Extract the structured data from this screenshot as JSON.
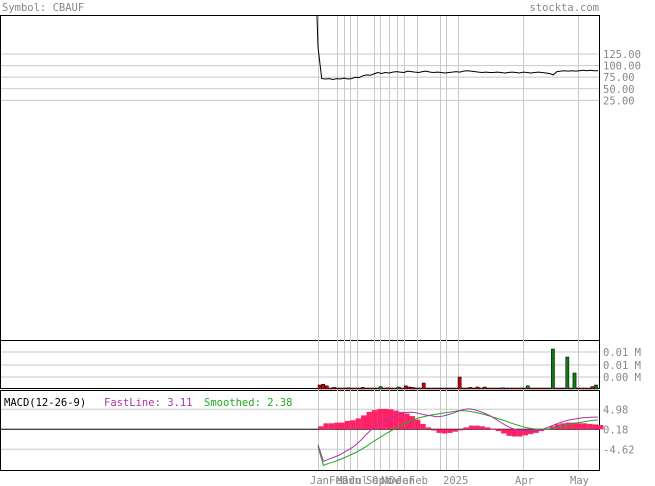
{
  "header": {
    "symbol_label": "Symbol: CBAUF",
    "brand": "stockta.com"
  },
  "colors": {
    "text_gray": "#888888",
    "grid": "#c8c8c8",
    "price_line": "#000000",
    "volume_up": "#117711",
    "volume_down": "#cc0000",
    "macd_fast": "#aa33aa",
    "macd_smoothed": "#22aa22",
    "macd_histogram": "#ff2266"
  },
  "chart_data": [
    {
      "type": "line",
      "panel": "price",
      "y_ticks": [
        "125.00",
        "100.00",
        "75.00",
        "50.00",
        "25.00"
      ],
      "x_ticks": [
        "Jan",
        "Feb",
        "Mar",
        "Jun",
        "Jul",
        "Sep",
        "Oct",
        "Nov",
        "Dec",
        "Jan",
        "Feb",
        "2025",
        "Apr",
        "May"
      ],
      "ylim": [
        0,
        140
      ],
      "series": [
        {
          "values": [
            140,
            72,
            71,
            72,
            70,
            72,
            71,
            73,
            71,
            72,
            75,
            74,
            78,
            80,
            79,
            82,
            85,
            83,
            85,
            84,
            86,
            87,
            86,
            85,
            88,
            87,
            86,
            85,
            87,
            88,
            86,
            85,
            86,
            85,
            84,
            85,
            86,
            87,
            86,
            88,
            89,
            88,
            87,
            86,
            85,
            86,
            85,
            85,
            86,
            85,
            84,
            85,
            86,
            85,
            84,
            86,
            85,
            84,
            85,
            86,
            85,
            84,
            83,
            80,
            87,
            88,
            89,
            88,
            89,
            88,
            89,
            90,
            89,
            90,
            89,
            89
          ]
        }
      ]
    },
    {
      "type": "bar",
      "panel": "volume",
      "y_ticks": [
        "0.01 M",
        "0.01 M",
        "0.00 M"
      ],
      "bars": [
        {
          "v": 0.1,
          "c": "red"
        },
        {
          "v": 0.12,
          "c": "red"
        },
        {
          "v": 0.08,
          "c": "red"
        },
        {
          "v": 0.0,
          "c": "red"
        },
        {
          "v": 0.04,
          "c": "red"
        },
        {
          "v": 0.02,
          "c": "red"
        },
        {
          "v": 0.02,
          "c": "red"
        },
        {
          "v": 0.0,
          "c": "red"
        },
        {
          "v": 0.03,
          "c": "red"
        },
        {
          "v": 0.02,
          "c": "red"
        },
        {
          "v": 0.02,
          "c": "red"
        },
        {
          "v": 0.0,
          "c": "red"
        },
        {
          "v": 0.04,
          "c": "red"
        },
        {
          "v": 0.0,
          "c": "red"
        },
        {
          "v": 0.02,
          "c": "red"
        },
        {
          "v": 0.02,
          "c": "red"
        },
        {
          "v": 0.0,
          "c": "red"
        },
        {
          "v": 0.06,
          "c": "green"
        },
        {
          "v": 0.0,
          "c": "red"
        },
        {
          "v": 0.03,
          "c": "red"
        },
        {
          "v": 0.0,
          "c": "red"
        },
        {
          "v": 0.0,
          "c": "red"
        },
        {
          "v": 0.05,
          "c": "green"
        },
        {
          "v": 0.0,
          "c": "red"
        },
        {
          "v": 0.08,
          "c": "red"
        },
        {
          "v": 0.05,
          "c": "red"
        },
        {
          "v": 0.04,
          "c": "red"
        },
        {
          "v": 0.0,
          "c": "red"
        },
        {
          "v": 0.0,
          "c": "red"
        },
        {
          "v": 0.15,
          "c": "red"
        },
        {
          "v": 0.0,
          "c": "red"
        },
        {
          "v": 0.0,
          "c": "red"
        },
        {
          "v": 0.02,
          "c": "red"
        },
        {
          "v": 0.0,
          "c": "red"
        },
        {
          "v": 0.0,
          "c": "red"
        },
        {
          "v": 0.0,
          "c": "red"
        },
        {
          "v": 0.0,
          "c": "red"
        },
        {
          "v": 0.02,
          "c": "red"
        },
        {
          "v": 0.0,
          "c": "red"
        },
        {
          "v": 0.3,
          "c": "red"
        },
        {
          "v": 0.0,
          "c": "red"
        },
        {
          "v": 0.0,
          "c": "red"
        },
        {
          "v": 0.04,
          "c": "red"
        },
        {
          "v": 0.0,
          "c": "red"
        },
        {
          "v": 0.05,
          "c": "red"
        },
        {
          "v": 0.02,
          "c": "green"
        },
        {
          "v": 0.05,
          "c": "red"
        },
        {
          "v": 0.0,
          "c": "red"
        },
        {
          "v": 0.0,
          "c": "red"
        },
        {
          "v": 0.02,
          "c": "red"
        },
        {
          "v": 0.0,
          "c": "red"
        },
        {
          "v": 0.03,
          "c": "red"
        },
        {
          "v": 0.0,
          "c": "red"
        },
        {
          "v": 0.0,
          "c": "red"
        },
        {
          "v": 0.0,
          "c": "red"
        },
        {
          "v": 0.0,
          "c": "red"
        },
        {
          "v": 0.0,
          "c": "red"
        },
        {
          "v": 0.0,
          "c": "red"
        },
        {
          "v": 0.08,
          "c": "green"
        },
        {
          "v": 0.0,
          "c": "red"
        },
        {
          "v": 0.0,
          "c": "red"
        },
        {
          "v": 0.0,
          "c": "red"
        },
        {
          "v": 0.0,
          "c": "red"
        },
        {
          "v": 0.0,
          "c": "red"
        },
        {
          "v": 0.0,
          "c": "red"
        },
        {
          "v": 1.0,
          "c": "green"
        },
        {
          "v": 0.0,
          "c": "red"
        },
        {
          "v": 0.0,
          "c": "red"
        },
        {
          "v": 0.0,
          "c": "red"
        },
        {
          "v": 0.8,
          "c": "green"
        },
        {
          "v": 0.0,
          "c": "red"
        },
        {
          "v": 0.4,
          "c": "green"
        },
        {
          "v": 0.0,
          "c": "red"
        },
        {
          "v": 0.0,
          "c": "red"
        },
        {
          "v": 0.0,
          "c": "red"
        },
        {
          "v": 0.0,
          "c": "red"
        },
        {
          "v": 0.06,
          "c": "red"
        },
        {
          "v": 0.1,
          "c": "green"
        }
      ]
    },
    {
      "type": "line",
      "panel": "macd",
      "title": "MACD(12-26-9)",
      "fastline_label": "FastLine: 3.11",
      "smoothed_label": "Smoothed: 2.38",
      "y_ticks": [
        "4.98",
        "0.18",
        "-4.62"
      ],
      "ylim": [
        -9,
        7
      ],
      "series": [
        {
          "name": "FastLine",
          "values": [
            -3.5,
            -7.5,
            -7.0,
            -6.5,
            -6.0,
            -5.2,
            -4.5,
            -3.6,
            -2.4,
            -1.0,
            0.2,
            1.2,
            2.0,
            2.7,
            3.2,
            3.7,
            4.1,
            4.3,
            4.2,
            3.9,
            3.6,
            3.4,
            3.2,
            3.3,
            3.6,
            4.0,
            4.5,
            4.9,
            5.1,
            4.9,
            4.5,
            4.0,
            3.4,
            2.6,
            1.8,
            1.0,
            0.4,
            0.0,
            -0.2,
            -0.3,
            -0.3,
            -0.1,
            0.3,
            0.8,
            1.3,
            1.8,
            2.2,
            2.5,
            2.7,
            2.9,
            3.0,
            3.1,
            3.1
          ]
        },
        {
          "name": "Smoothed",
          "values": [
            -4.0,
            -8.5,
            -8.0,
            -7.6,
            -7.1,
            -6.6,
            -6.0,
            -5.4,
            -4.7,
            -3.9,
            -3.0,
            -2.2,
            -1.4,
            -0.6,
            0.1,
            0.8,
            1.5,
            2.1,
            2.6,
            3.0,
            3.3,
            3.6,
            3.8,
            4.0,
            4.2,
            4.4,
            4.6,
            4.6,
            4.5,
            4.3,
            4.0,
            3.7,
            3.3,
            2.9,
            2.5,
            2.1,
            1.6,
            1.2,
            0.8,
            0.5,
            0.3,
            0.2,
            0.2,
            0.3,
            0.5,
            0.8,
            1.1,
            1.4,
            1.7,
            1.9,
            2.1,
            2.3,
            2.4
          ]
        }
      ]
    }
  ]
}
